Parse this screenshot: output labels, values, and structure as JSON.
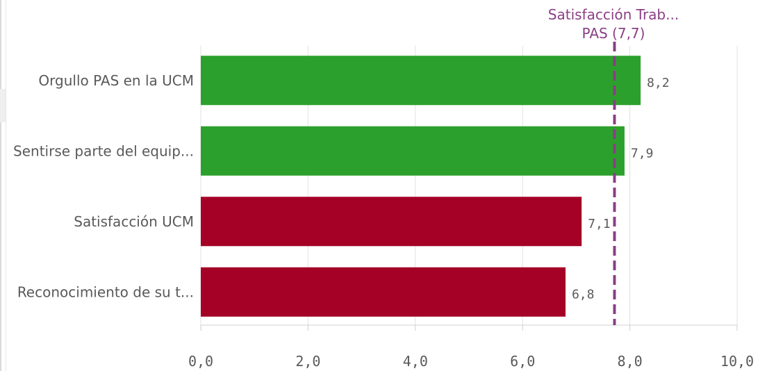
{
  "chart_data": {
    "type": "bar",
    "orientation": "horizontal",
    "categories": [
      "Orgullo PAS en la UCM",
      "Sentirse parte del equip...",
      "Satisfacción UCM",
      "Reconocimiento de su t..."
    ],
    "values": [
      8.2,
      7.9,
      7.1,
      6.8
    ],
    "value_labels": [
      "8,2",
      "7,9",
      "7,1",
      "6,8"
    ],
    "bar_colors": [
      "#2ca02c",
      "#2ca02c",
      "#a50026",
      "#a50026"
    ],
    "xlim": [
      0,
      10
    ],
    "x_ticks": [
      0,
      2,
      4,
      6,
      8,
      10
    ],
    "x_tick_labels": [
      "0,0",
      "2,0",
      "4,0",
      "6,0",
      "8,0",
      "10,0"
    ],
    "grid": true,
    "reference_line": {
      "value": 7.7,
      "label_line1": "Satisfacción Trab...",
      "label_line2": "PAS (7,7)",
      "color": "#8a3f86",
      "style": "dashed"
    }
  }
}
